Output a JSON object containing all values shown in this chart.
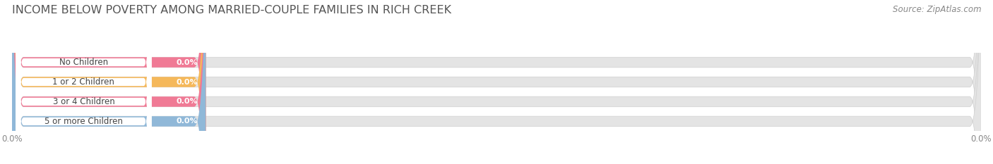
{
  "title": "INCOME BELOW POVERTY AMONG MARRIED-COUPLE FAMILIES IN RICH CREEK",
  "source": "Source: ZipAtlas.com",
  "categories": [
    "No Children",
    "1 or 2 Children",
    "3 or 4 Children",
    "5 or more Children"
  ],
  "values": [
    0.0,
    0.0,
    0.0,
    0.0
  ],
  "bar_colors": [
    "#f07a95",
    "#f5b85a",
    "#f07a95",
    "#90b8d8"
  ],
  "bar_bg_color": "#e4e4e4",
  "title_fontsize": 11.5,
  "source_fontsize": 8.5,
  "tick_fontsize": 8.5,
  "value_label_fontsize": 8,
  "category_fontsize": 8.5,
  "fig_bg_color": "#ffffff",
  "axes_bg_color": "#ffffff",
  "grid_color": "#cccccc",
  "bar_edge_color": "#d0d0d0"
}
